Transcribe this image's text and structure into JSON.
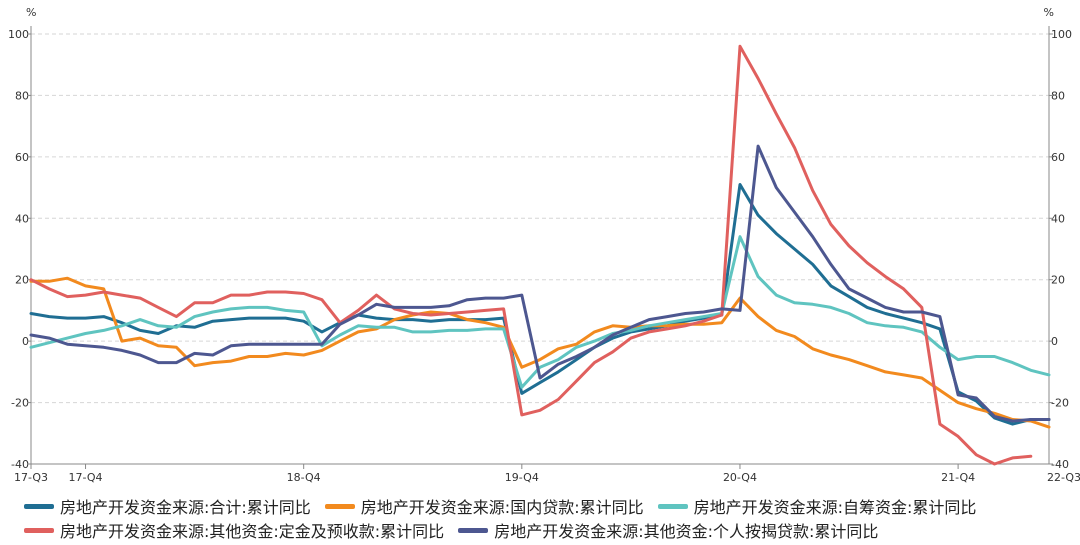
{
  "chart_data": {
    "type": "line",
    "title": "",
    "unit_left": "%",
    "unit_right": "%",
    "ylim": [
      -40,
      100
    ],
    "yticks": [
      -40,
      -20,
      0,
      20,
      40,
      60,
      80,
      100
    ],
    "xticks": [
      {
        "label": "17-Q3",
        "i": 0
      },
      {
        "label": "17-Q4",
        "i": 3
      },
      {
        "label": "18-Q4",
        "i": 15
      },
      {
        "label": "19-Q4",
        "i": 27
      },
      {
        "label": "20-Q4",
        "i": 39
      },
      {
        "label": "21-Q4",
        "i": 51
      },
      {
        "label": "22-Q3",
        "i": 58
      }
    ],
    "grid": "horizontal-dashed",
    "legend_position": "bottom",
    "series": [
      {
        "name": "房地产开发资金来源:合计:累计同比",
        "color": "#1f6e93",
        "values": [
          9,
          8,
          7.5,
          7.5,
          8,
          6,
          3.5,
          2.5,
          5,
          4.5,
          6.5,
          7,
          7.5,
          7.5,
          7.5,
          6.5,
          3,
          6,
          8.5,
          7.5,
          7,
          7,
          6.5,
          7,
          7,
          7,
          7.5,
          -17,
          -13.5,
          -10,
          -6,
          -2,
          1,
          3,
          4,
          5,
          6.5,
          7.5,
          8.5,
          51,
          41,
          35,
          30,
          25,
          18,
          14.5,
          11,
          9,
          7.5,
          6,
          4,
          -16.5,
          -19.5,
          -25,
          -27,
          -25.5,
          -25.5
        ]
      },
      {
        "name": "房地产开发资金来源:国内贷款:累计同比",
        "color": "#f28a1e",
        "values": [
          19.5,
          19.5,
          20.5,
          18,
          17,
          0,
          1,
          -1.5,
          -2,
          -8,
          -7,
          -6.5,
          -5,
          -5,
          -4,
          -4.5,
          -3,
          0,
          3,
          4,
          7,
          8.5,
          9.5,
          9,
          7,
          6,
          4.5,
          -8.5,
          -6,
          -2.5,
          -1,
          3,
          5,
          4.5,
          5,
          5,
          5.5,
          5.5,
          6,
          14,
          8,
          3.5,
          1.5,
          -2.5,
          -4.5,
          -6,
          -8,
          -10,
          -11,
          -12,
          -16,
          -20,
          -22,
          -23.5,
          -25.5,
          -26,
          -28
        ]
      },
      {
        "name": "房地产开发资金来源:自筹资金:累计同比",
        "color": "#5fc4c0",
        "values": [
          -2,
          -0.5,
          1,
          2.5,
          3.5,
          5,
          7,
          5,
          4.5,
          8,
          9.5,
          10.5,
          11,
          11,
          10,
          9.5,
          -1.5,
          2,
          5,
          4.5,
          4.5,
          3,
          3,
          3.5,
          3.5,
          4,
          4,
          -15,
          -8.5,
          -6,
          -2,
          0,
          2.5,
          3.5,
          5,
          6,
          7,
          8,
          9,
          34,
          21,
          15,
          12.5,
          12,
          11,
          9,
          6,
          5,
          4.5,
          3,
          -2,
          -6,
          -5,
          -5,
          -7,
          -9.5,
          -11
        ]
      },
      {
        "name": "房地产开发资金来源:其他资金:定金及预收款:累计同比",
        "color": "#e0605e",
        "values": [
          20,
          17,
          14.5,
          15,
          16,
          15,
          14,
          11,
          8,
          12.5,
          12.5,
          15,
          15,
          16,
          16,
          15.5,
          13.5,
          6,
          10,
          15,
          10.5,
          9,
          8.5,
          9,
          9.5,
          10,
          10.5,
          -24,
          -22.5,
          -19,
          -13,
          -7,
          -3.5,
          1,
          3,
          4,
          5,
          6.5,
          8.5,
          96,
          85.5,
          74,
          63,
          49,
          38,
          31,
          25.5,
          21,
          17,
          11,
          -27,
          -31,
          -37,
          -40,
          -38,
          -37.5
        ]
      },
      {
        "name": "房地产开发资金来源:其他资金:个人按揭贷款:累计同比",
        "color": "#4d5790",
        "values": [
          2,
          1,
          -1,
          -1.5,
          -2,
          -3,
          -4.5,
          -7,
          -7,
          -4,
          -4.5,
          -1.5,
          -1,
          -1,
          -1,
          -1,
          -1,
          5.5,
          8.5,
          12,
          11,
          11,
          11,
          11.5,
          13.5,
          14,
          14,
          15,
          -12,
          -7.5,
          -5,
          -2,
          2,
          4.5,
          7,
          8,
          9,
          9.5,
          10.5,
          10,
          63.5,
          50,
          42,
          34,
          25,
          17,
          14,
          11,
          9.5,
          9.5,
          8,
          -17.5,
          -18.5,
          -24.5,
          -26,
          -25.5,
          -25.5
        ]
      }
    ]
  }
}
